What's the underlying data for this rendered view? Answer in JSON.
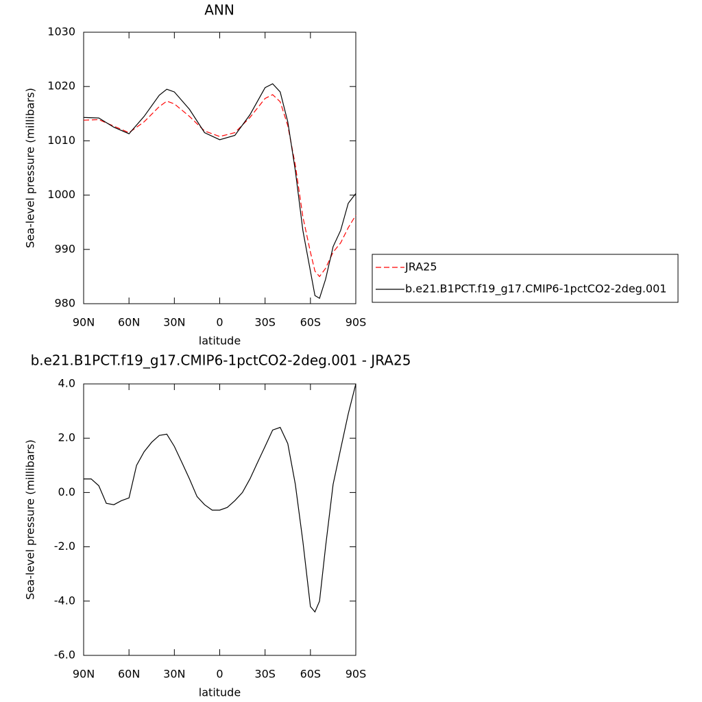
{
  "chart_data": [
    {
      "type": "line",
      "title": "ANN",
      "xlabel": "latitude",
      "ylabel": "Sea-level pressure (millibars)",
      "x": [
        90,
        80,
        70,
        60,
        50,
        40,
        35,
        30,
        20,
        10,
        0,
        -10,
        -20,
        -30,
        -35,
        -40,
        -45,
        -50,
        -55,
        -60,
        -63,
        -66,
        -70,
        -75,
        -80,
        -85,
        -90
      ],
      "xlim": [
        90,
        -90
      ],
      "xticks": [
        {
          "value": 90,
          "label": "90N"
        },
        {
          "value": 60,
          "label": "60N"
        },
        {
          "value": 30,
          "label": "30N"
        },
        0,
        {
          "value": -30,
          "label": "30S"
        },
        {
          "value": -60,
          "label": "60S"
        },
        {
          "value": -90,
          "label": "90S"
        }
      ],
      "ylim": [
        980,
        1030
      ],
      "yticks": [
        980,
        990,
        1000,
        1010,
        1020,
        1030
      ],
      "legend": "right",
      "series": [
        {
          "name": "JRA25",
          "color": "#ff0000",
          "dash": true,
          "values": [
            1013.8,
            1013.9,
            1012.7,
            1011.5,
            1013.5,
            1016.3,
            1017.3,
            1016.8,
            1014.5,
            1011.8,
            1010.8,
            1011.5,
            1014.3,
            1017.8,
            1018.5,
            1017.2,
            1012.8,
            1005.5,
            996.0,
            989.5,
            986.0,
            985.0,
            986.5,
            989.5,
            991.2,
            994.0,
            996.3
          ]
        },
        {
          "name": "b.e21.B1PCT.f19_g17.CMIP6-1pctCO2-2deg.001",
          "color": "#000000",
          "dash": false,
          "values": [
            1014.3,
            1014.2,
            1012.5,
            1011.3,
            1014.5,
            1018.4,
            1019.5,
            1019.0,
            1015.8,
            1011.5,
            1010.2,
            1011.0,
            1014.8,
            1019.8,
            1020.5,
            1019.0,
            1013.5,
            1004.5,
            993.5,
            986.0,
            981.5,
            981.0,
            984.5,
            990.5,
            993.5,
            998.5,
            1000.3
          ]
        }
      ]
    },
    {
      "type": "line",
      "title": "b.e21.B1PCT.f19_g17.CMIP6-1pctCO2-2deg.001 - JRA25",
      "xlabel": "latitude",
      "ylabel": "Sea-level pressure (millibars)",
      "x": [
        90,
        85,
        80,
        75,
        70,
        65,
        60,
        55,
        50,
        45,
        40,
        35,
        30,
        25,
        20,
        15,
        10,
        5,
        0,
        -5,
        -10,
        -15,
        -20,
        -25,
        -30,
        -35,
        -40,
        -45,
        -50,
        -55,
        -60,
        -63,
        -66,
        -70,
        -75,
        -80,
        -85,
        -90
      ],
      "xlim": [
        90,
        -90
      ],
      "xticks": [
        {
          "value": 90,
          "label": "90N"
        },
        {
          "value": 60,
          "label": "60N"
        },
        {
          "value": 30,
          "label": "30N"
        },
        0,
        {
          "value": -30,
          "label": "30S"
        },
        {
          "value": -60,
          "label": "60S"
        },
        {
          "value": -90,
          "label": "90S"
        }
      ],
      "ylim": [
        -6,
        4
      ],
      "yticks": [
        {
          "value": -6,
          "label": "-6.0"
        },
        {
          "value": -4,
          "label": "-4.0"
        },
        {
          "value": -2,
          "label": "-2.0"
        },
        {
          "value": 0,
          "label": "0.0"
        },
        {
          "value": 2,
          "label": "2.0"
        },
        {
          "value": 4,
          "label": "4.0"
        }
      ],
      "series": [
        {
          "color": "#000000",
          "dash": false,
          "values": [
            0.5,
            0.5,
            0.25,
            -0.4,
            -0.45,
            -0.3,
            -0.2,
            1.0,
            1.5,
            1.85,
            2.1,
            2.15,
            1.7,
            1.1,
            0.5,
            -0.15,
            -0.45,
            -0.65,
            -0.65,
            -0.55,
            -0.3,
            0.0,
            0.5,
            1.1,
            1.7,
            2.3,
            2.4,
            1.8,
            0.3,
            -1.8,
            -4.2,
            -4.4,
            -4.0,
            -2.0,
            0.3,
            1.6,
            2.9,
            4.0
          ]
        }
      ]
    }
  ]
}
